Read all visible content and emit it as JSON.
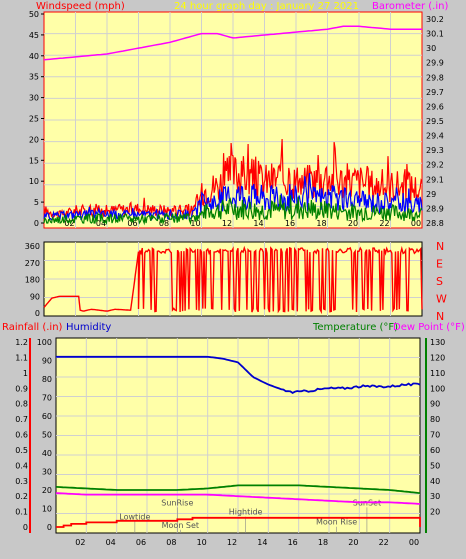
{
  "header": {
    "left_title": "Windspeed (mph)",
    "center_title": "24 hour graph day : January 27 2021",
    "right_title": "Barometer (.in)"
  },
  "colors": {
    "plot_bg": "#ffffa8",
    "frame_bg": "#c8c8c8",
    "wind": "#ff0000",
    "gust_band": "#0000ff",
    "avg_band": "#008000",
    "baro": "#ff00ff",
    "humidity": "#0000cc",
    "temperature": "#008000",
    "dewpoint": "#ff00ff",
    "rainfall": "#ff0000",
    "title_yellow": "#ffff00",
    "blue_label": "#0000cc"
  },
  "chart_data": [
    {
      "type": "line",
      "title": "Windspeed / Barometer",
      "ylabel": "Windspeed (mph)",
      "y2label": "Barometer (.in)",
      "x_ticks": [
        "02",
        "04",
        "06",
        "08",
        "10",
        "12",
        "14",
        "16",
        "18",
        "20",
        "22",
        "00"
      ],
      "y_ticks": [
        "0",
        "5",
        "10",
        "15",
        "20",
        "25",
        "30",
        "35",
        "40",
        "45",
        "50"
      ],
      "y2_ticks": [
        "28.8",
        "28.9",
        "29",
        "29.1",
        "29.2",
        "29.3",
        "29.4",
        "29.5",
        "29.6",
        "29.7",
        "29.8",
        "29.9",
        "30",
        "30.1",
        "30.2"
      ],
      "ylim": [
        0,
        50
      ],
      "y2lim": [
        28.8,
        30.2
      ],
      "xlim": [
        0,
        24
      ],
      "grid": true,
      "series": [
        {
          "key": "barometer",
          "color": "#ff00ff",
          "x": [
            0,
            2,
            4,
            6,
            8,
            9,
            10,
            11,
            12,
            13,
            14,
            16,
            18,
            19,
            20,
            21,
            22,
            23,
            24
          ],
          "y": [
            29.92,
            29.94,
            29.96,
            30.0,
            30.04,
            30.07,
            30.1,
            30.1,
            30.07,
            30.08,
            30.09,
            30.11,
            30.13,
            30.15,
            30.15,
            30.14,
            30.13,
            30.13,
            30.13
          ]
        },
        {
          "key": "gust",
          "color": "#ff0000",
          "x": [
            0,
            1,
            2,
            4,
            6,
            8,
            9.5,
            10.2,
            11,
            12,
            13,
            14,
            15,
            16,
            17,
            18,
            19,
            20,
            21,
            22,
            23,
            24
          ],
          "y": [
            3,
            2,
            3,
            3,
            3.5,
            3,
            3,
            8,
            9,
            12,
            11,
            10,
            11,
            10,
            10,
            11,
            10,
            10,
            9,
            9,
            9,
            8
          ]
        },
        {
          "key": "wind_upper",
          "color": "#0000ff",
          "x": [
            0,
            2,
            4,
            6,
            8,
            9.5,
            10.2,
            11,
            12,
            14,
            16,
            18,
            20,
            22,
            24
          ],
          "y": [
            1.5,
            2,
            2,
            2,
            2,
            2,
            5,
            5,
            7,
            6,
            6,
            6,
            5,
            5,
            4
          ]
        },
        {
          "key": "wind_avg",
          "color": "#008000",
          "x": [
            0,
            2,
            4,
            6,
            8,
            9.5,
            10.2,
            11,
            12,
            14,
            16,
            18,
            20,
            22,
            24
          ],
          "y": [
            0.5,
            1,
            1,
            1,
            1,
            1,
            2.5,
            3,
            3.5,
            3,
            3,
            3,
            2.5,
            2.5,
            2
          ]
        }
      ]
    },
    {
      "type": "line",
      "title": "Wind Direction",
      "y_ticks": [
        "0",
        "90",
        "180",
        "270",
        "360"
      ],
      "y_compass": [
        "N",
        "W",
        "S",
        "E",
        "N"
      ],
      "ylim": [
        0,
        360
      ],
      "xlim": [
        0,
        24
      ],
      "series": [
        {
          "key": "direction",
          "color": "#ff0000",
          "x": [
            0,
            0.3,
            0.5,
            1.0,
            2.2,
            2.3,
            2.5,
            3.0,
            4.0,
            4.5,
            5.5,
            6.0,
            7.0,
            8.0,
            9.0,
            10.0,
            12.0,
            14.0,
            16.0,
            18.0,
            20.0,
            22.0,
            24.0
          ],
          "y": [
            30,
            60,
            80,
            90,
            90,
            15,
            10,
            20,
            10,
            20,
            15,
            330,
            340,
            330,
            340,
            330,
            340,
            330,
            340,
            330,
            340,
            330,
            340
          ]
        }
      ]
    },
    {
      "type": "line",
      "title": "Rainfall / Humidity / Temperature / Dew Point",
      "ylabel_left": "Rainfall (.in)",
      "ylabel_left2": "Humidity",
      "ylabel_right": "Temperature (°F)",
      "ylabel_right2": "Dew Point (°F)",
      "x_ticks": [
        "02",
        "04",
        "06",
        "08",
        "10",
        "12",
        "14",
        "16",
        "18",
        "20",
        "22",
        "00"
      ],
      "rain_ticks": [
        "0",
        "0.1",
        "0.2",
        "0.3",
        "0.4",
        "0.5",
        "0.6",
        "0.7",
        "0.8",
        "0.9",
        "1",
        "1.1",
        "1.2"
      ],
      "humidity_ticks": [
        "0",
        "10",
        "20",
        "30",
        "40",
        "50",
        "60",
        "70",
        "80",
        "90",
        "100"
      ],
      "temp_ticks": [
        "20",
        "30",
        "40",
        "50",
        "60",
        "70",
        "80",
        "90",
        "100",
        "110",
        "120",
        "130"
      ],
      "rain_lim": [
        0,
        1.2
      ],
      "humidity_lim": [
        0,
        100
      ],
      "temp_lim": [
        10,
        130
      ],
      "xlim": [
        0,
        24
      ],
      "grid": true,
      "annotations": [
        "Lowtide",
        "SunRise",
        "Moon Set",
        "Hightide",
        "SunSet",
        "Moon Rise"
      ],
      "series": [
        {
          "key": "humidity",
          "color": "#0000cc",
          "axis": "humidity",
          "x": [
            0,
            2,
            4,
            6,
            8,
            10,
            11,
            12,
            12.5,
            13,
            14,
            15,
            15.5,
            16,
            17,
            18,
            19,
            20,
            22,
            23,
            24
          ],
          "y": [
            92,
            92,
            92,
            92,
            92,
            92,
            91,
            89,
            85,
            81,
            77,
            74,
            73,
            73,
            74,
            75,
            75,
            76,
            76,
            77,
            77
          ]
        },
        {
          "key": "temperature",
          "color": "#008000",
          "axis": "temp",
          "x": [
            0,
            2,
            4,
            6,
            8,
            10,
            12,
            14,
            16,
            18,
            20,
            22,
            24
          ],
          "y": [
            36,
            35,
            34,
            34,
            34,
            35,
            37,
            37,
            37,
            36,
            35,
            34,
            32
          ]
        },
        {
          "key": "dewpoint",
          "color": "#ff00ff",
          "axis": "temp",
          "x": [
            0,
            2,
            4,
            6,
            8,
            10,
            12,
            14,
            16,
            18,
            20,
            22,
            24
          ],
          "y": [
            32,
            31,
            31,
            31,
            31,
            31,
            30,
            29,
            28,
            27,
            26,
            26,
            25
          ]
        },
        {
          "key": "rainfall",
          "color": "#ff0000",
          "axis": "rain",
          "x": [
            0,
            0.5,
            1.0,
            2.0,
            4.0,
            6.0,
            8.0,
            9.0,
            10.0,
            12.0,
            14.0,
            16.0,
            18.0,
            20.0,
            22.0,
            23.9,
            24.0
          ],
          "y": [
            0,
            0.01,
            0.02,
            0.03,
            0.04,
            0.04,
            0.05,
            0.06,
            0.06,
            0.06,
            0.06,
            0.06,
            0.06,
            0.06,
            0.06,
            0.06,
            0
          ]
        }
      ]
    }
  ]
}
